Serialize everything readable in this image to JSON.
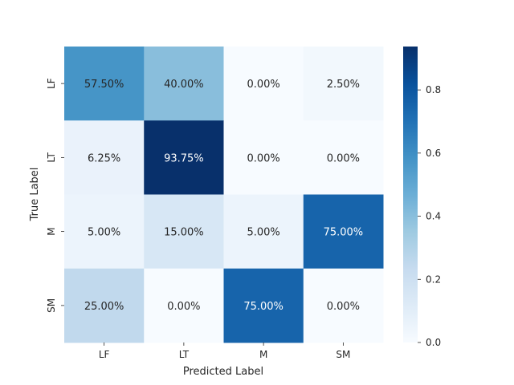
{
  "chart_data": {
    "type": "heatmap",
    "title": "",
    "xlabel": "Predicted Label",
    "ylabel": "True Label",
    "x_categories": [
      "LF",
      "LT",
      "M",
      "SM"
    ],
    "y_categories": [
      "LF",
      "LT",
      "M",
      "SM"
    ],
    "values": [
      [
        0.575,
        0.4,
        0.0,
        0.025
      ],
      [
        0.0625,
        0.9375,
        0.0,
        0.0
      ],
      [
        0.05,
        0.15,
        0.05,
        0.75
      ],
      [
        0.25,
        0.0,
        0.75,
        0.0
      ]
    ],
    "cell_labels": [
      [
        "57.50%",
        "40.00%",
        "0.00%",
        "2.50%"
      ],
      [
        "6.25%",
        "93.75%",
        "0.00%",
        "0.00%"
      ],
      [
        "5.00%",
        "15.00%",
        "5.00%",
        "75.00%"
      ],
      [
        "25.00%",
        "0.00%",
        "75.00%",
        "0.00%"
      ]
    ],
    "colorbar": {
      "range": [
        0.0,
        0.9375
      ],
      "ticks": [
        "0.0",
        "0.2",
        "0.4",
        "0.6",
        "0.8"
      ],
      "tick_values": [
        0.0,
        0.2,
        0.4,
        0.6,
        0.8
      ],
      "colormap": "Blues"
    }
  }
}
